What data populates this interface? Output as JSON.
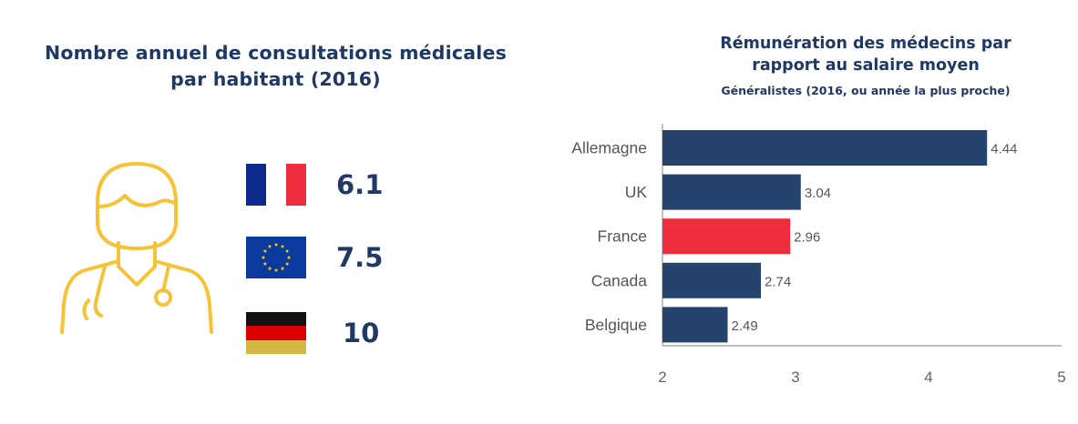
{
  "left": {
    "title_line1": "Nombre annuel de consultations médicales",
    "title_line2": "par habitant (2016)",
    "stats": [
      {
        "flag": "france-flag",
        "value": "6.1"
      },
      {
        "flag": "eu-flag",
        "value": "7.5"
      },
      {
        "flag": "germany-flag",
        "value": "10"
      }
    ],
    "icon": "doctor-icon"
  },
  "colors": {
    "navy": "#1f3864",
    "bar_default": "#24436d",
    "bar_highlight": "#ee2d3f",
    "icon": "#f5c238",
    "fr_blue": "#0d2a8c",
    "fr_red": "#ee2d3f",
    "de_black": "#111111",
    "de_red": "#dd0000",
    "de_gold": "#d4b745",
    "eu_blue": "#0b3a9e",
    "eu_star": "#ffd21f"
  },
  "chart_data": {
    "type": "bar",
    "orientation": "horizontal",
    "title_line1": "Rémunération des médecins par",
    "title_line2": "rapport au salaire moyen",
    "subtitle": "Généralistes (2016, ou année la plus proche)",
    "categories": [
      "Allemagne",
      "UK",
      "France",
      "Canada",
      "Belgique"
    ],
    "values": [
      4.44,
      3.04,
      2.96,
      2.74,
      2.49
    ],
    "value_labels": [
      "4.44",
      "3.04",
      "2.96",
      "2.74",
      "2.49"
    ],
    "highlight": "France",
    "xlim": [
      2,
      5
    ],
    "xticks": [
      "2",
      "3",
      "4",
      "5"
    ],
    "xlabel": "",
    "ylabel": "",
    "grid": false
  }
}
